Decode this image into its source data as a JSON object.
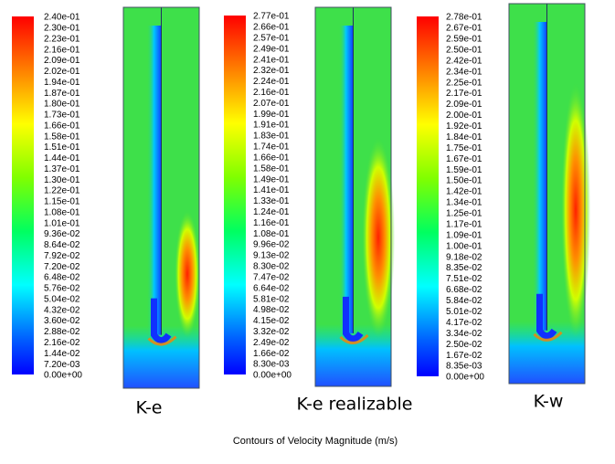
{
  "panels": [
    {
      "caption": "K-e",
      "colorbar_labels": [
        "2.40e-01",
        "2.30e-01",
        "2.23e-01",
        "2.16e-01",
        "2.09e-01",
        "2.02e-01",
        "1.94e-01",
        "1.87e-01",
        "1.80e-01",
        "1.73e-01",
        "1.66e-01",
        "1.58e-01",
        "1.51e-01",
        "1.44e-01",
        "1.37e-01",
        "1.30e-01",
        "1.22e-01",
        "1.15e-01",
        "1.08e-01",
        "1.01e-01",
        "9.36e-02",
        "8.64e-02",
        "7.92e-02",
        "7.20e-02",
        "6.48e-02",
        "5.76e-02",
        "5.04e-02",
        "4.32e-02",
        "3.60e-02",
        "2.88e-02",
        "2.16e-02",
        "1.44e-02",
        "7.20e-03",
        "0.00e+00"
      ]
    },
    {
      "caption": "K-e realizable",
      "colorbar_labels": [
        "2.77e-01",
        "2.66e-01",
        "2.57e-01",
        "2.49e-01",
        "2.41e-01",
        "2.32e-01",
        "2.24e-01",
        "2.16e-01",
        "2.07e-01",
        "1.99e-01",
        "1.91e-01",
        "1.83e-01",
        "1.74e-01",
        "1.66e-01",
        "1.58e-01",
        "1.49e-01",
        "1.41e-01",
        "1.33e-01",
        "1.24e-01",
        "1.16e-01",
        "1.08e-01",
        "9.96e-02",
        "9.13e-02",
        "8.30e-02",
        "7.47e-02",
        "6.64e-02",
        "5.81e-02",
        "4.98e-02",
        "4.15e-02",
        "3.32e-02",
        "2.49e-02",
        "1.66e-02",
        "8.30e-03",
        "0.00e+00"
      ]
    },
    {
      "caption": "K-w",
      "colorbar_labels": [
        "2.78e-01",
        "2.67e-01",
        "2.59e-01",
        "2.50e-01",
        "2.42e-01",
        "2.34e-01",
        "2.25e-01",
        "2.17e-01",
        "2.09e-01",
        "2.00e-01",
        "1.92e-01",
        "1.84e-01",
        "1.75e-01",
        "1.67e-01",
        "1.59e-01",
        "1.50e-01",
        "1.42e-01",
        "1.34e-01",
        "1.25e-01",
        "1.17e-01",
        "1.09e-01",
        "1.00e-01",
        "9.18e-02",
        "8.35e-02",
        "7.51e-02",
        "6.68e-02",
        "5.84e-02",
        "5.01e-02",
        "4.17e-02",
        "3.34e-02",
        "2.50e-02",
        "1.67e-02",
        "8.35e-03",
        "0.00e+00"
      ]
    }
  ],
  "footer": "Contours of Velocity Magnitude (m/s)"
}
